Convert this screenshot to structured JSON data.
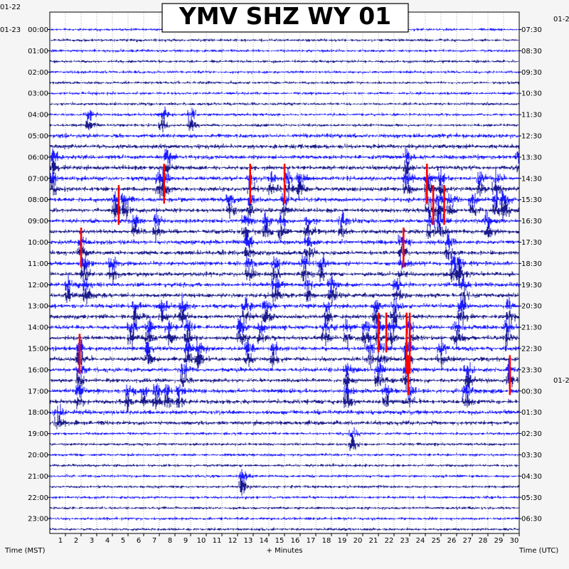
{
  "chart_data": {
    "type": "line",
    "title": "YMV SHZ WY 01",
    "left_axis_title": "Time (MST)",
    "right_axis_title": "Time (UTC)",
    "x_axis_title": "+ Minutes",
    "x_ticks": [
      "1",
      "2",
      "3",
      "4",
      "5",
      "6",
      "7",
      "8",
      "9",
      "10",
      "11",
      "12",
      "13",
      "14",
      "15",
      "16",
      "17",
      "18",
      "19",
      "20",
      "21",
      "22",
      "23",
      "24",
      "25",
      "26",
      "27",
      "28",
      "29",
      "30"
    ],
    "xlim": [
      0,
      30
    ],
    "left_dates": [
      "01-22",
      "01-23"
    ],
    "right_dates": [
      "01-22",
      "01-2"
    ],
    "left_hour_labels": [
      "00:00",
      "01:00",
      "02:00",
      "03:00",
      "04:00",
      "05:00",
      "06:00",
      "07:00",
      "08:00",
      "09:00",
      "10:00",
      "11:00",
      "12:00",
      "13:00",
      "14:00",
      "15:00",
      "16:00",
      "17:00",
      "18:00",
      "19:00",
      "20:00",
      "21:00",
      "22:00",
      "23:00"
    ],
    "right_hour_labels": [
      "07:30",
      "08:30",
      "09:30",
      "10:30",
      "11:30",
      "12:30",
      "13:30",
      "14:30",
      "15:30",
      "16:30",
      "17:30",
      "18:30",
      "19:30",
      "20:30",
      "21:30",
      "22:30",
      "23:30",
      "00:30",
      "01:30",
      "02:30",
      "03:30",
      "04:30",
      "05:30",
      "06:30"
    ],
    "traces_per_hour": 2,
    "trace_minutes": 30,
    "trace_colors": [
      "#0000ff",
      "#00007f",
      "#0000ff",
      "#000080"
    ],
    "clip_color": "#ff0000",
    "seismic_activity_rows": [
      {
        "hour": "04:00",
        "minutes": [
          2.5,
          7.2,
          9.0
        ]
      },
      {
        "hour": "06:00",
        "minutes": [
          0.2,
          7.5,
          22.8,
          30.0
        ]
      },
      {
        "hour": "07:00",
        "minutes": [
          0.2,
          7.0,
          7.3,
          12.8,
          14.2,
          15.2,
          16.0,
          22.8,
          24.2,
          25.0,
          27.5,
          28.5
        ]
      },
      {
        "hour": "08:00",
        "minutes": [
          4.2,
          4.8,
          11.5,
          12.8,
          15.0,
          24.2,
          24.8,
          25.6,
          27.0,
          28.5,
          29.1
        ]
      },
      {
        "hour": "09:00",
        "minutes": [
          5.5,
          6.8,
          12.5,
          13.8,
          14.8,
          16.5,
          18.7,
          24.3,
          25.0,
          28.0
        ]
      },
      {
        "hour": "10:00",
        "minutes": [
          2.0,
          12.7,
          16.5,
          22.5,
          25.5
        ]
      },
      {
        "hour": "11:00",
        "minutes": [
          2.2,
          4.0,
          12.7,
          14.4,
          16.3,
          17.4,
          22.5,
          25.8,
          26.2
        ]
      },
      {
        "hour": "12:00",
        "minutes": [
          1.2,
          2.3,
          14.4,
          16.5,
          18.0,
          22.2,
          26.5
        ]
      },
      {
        "hour": "13:00",
        "minutes": [
          5.5,
          7.2,
          8.5,
          12.5,
          13.8,
          17.7,
          20.8,
          22.0,
          26.3,
          29.4
        ]
      },
      {
        "hour": "14:00",
        "minutes": [
          5.2,
          6.3,
          7.6,
          8.8,
          12.2,
          13.5,
          17.6,
          19.0,
          20.2,
          21.0,
          21.8,
          23.0,
          26.0,
          29.2
        ]
      },
      {
        "hour": "15:00",
        "minutes": [
          1.9,
          6.3,
          8.8,
          9.5,
          12.7,
          14.3,
          20.5,
          21.2,
          22.8,
          25.0
        ]
      },
      {
        "hour": "16:00",
        "minutes": [
          1.9,
          8.6,
          19.0,
          21.0,
          22.8,
          26.7,
          29.4
        ]
      },
      {
        "hour": "17:00",
        "minutes": [
          1.8,
          5.0,
          6.0,
          6.8,
          7.5,
          8.3,
          19.0,
          21.5,
          23.0,
          26.6
        ]
      },
      {
        "hour": "18:00",
        "minutes": [
          0.5
        ]
      },
      {
        "hour": "19:00",
        "minutes": [
          19.3
        ]
      },
      {
        "hour": "21:00",
        "minutes": [
          12.3
        ]
      }
    ],
    "clipped_events": [
      {
        "hour": "07:00",
        "minutes": [
          7.3,
          12.8,
          15.0,
          24.1
        ]
      },
      {
        "hour": "08:00",
        "minutes": [
          4.4,
          24.5,
          25.2
        ]
      },
      {
        "hour": "10:00",
        "minutes": [
          2.0,
          22.6
        ]
      },
      {
        "hour": "14:00",
        "minutes": [
          21.0,
          21.5,
          22.8,
          23.0
        ]
      },
      {
        "hour": "15:00",
        "minutes": [
          1.9,
          22.8,
          23.0
        ]
      },
      {
        "hour": "16:00",
        "minutes": [
          22.9,
          29.4
        ]
      }
    ],
    "grid": true
  }
}
